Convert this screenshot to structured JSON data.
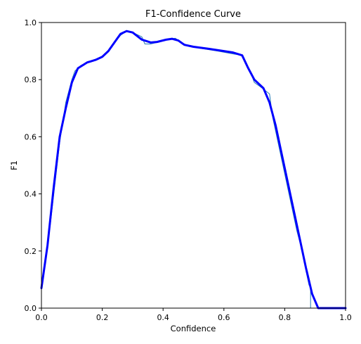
{
  "chart_data": {
    "type": "line",
    "title": "F1-Confidence Curve",
    "xlabel": "Confidence",
    "ylabel": "F1",
    "xlim": [
      0.0,
      1.0
    ],
    "ylim": [
      0.0,
      1.0
    ],
    "xticks": [
      "0.0",
      "0.2",
      "0.4",
      "0.6",
      "0.8",
      "1.0"
    ],
    "yticks": [
      "0.0",
      "0.2",
      "0.4",
      "0.6",
      "0.8",
      "1.0"
    ],
    "grid": false,
    "legend": "none",
    "series": [
      {
        "color": "#1f77b4",
        "style": "thin",
        "points": [
          [
            0.0,
            0.0
          ],
          [
            0.0,
            0.08
          ],
          [
            0.03,
            0.3
          ],
          [
            0.06,
            0.58
          ],
          [
            0.08,
            0.72
          ],
          [
            0.1,
            0.8
          ],
          [
            0.11,
            0.83
          ],
          [
            0.13,
            0.85
          ],
          [
            0.15,
            0.86
          ],
          [
            0.18,
            0.87
          ],
          [
            0.2,
            0.88
          ],
          [
            0.22,
            0.9
          ],
          [
            0.24,
            0.93
          ],
          [
            0.26,
            0.955
          ],
          [
            0.28,
            0.97
          ],
          [
            0.3,
            0.965
          ],
          [
            0.33,
            0.95
          ],
          [
            0.34,
            0.925
          ],
          [
            0.36,
            0.925
          ],
          [
            0.38,
            0.93
          ],
          [
            0.41,
            0.94
          ],
          [
            0.44,
            0.945
          ],
          [
            0.46,
            0.93
          ],
          [
            0.48,
            0.92
          ],
          [
            0.52,
            0.91
          ],
          [
            0.58,
            0.9
          ],
          [
            0.63,
            0.89
          ],
          [
            0.66,
            0.885
          ],
          [
            0.67,
            0.86
          ],
          [
            0.69,
            0.82
          ],
          [
            0.7,
            0.79
          ],
          [
            0.72,
            0.775
          ],
          [
            0.75,
            0.75
          ],
          [
            0.76,
            0.67
          ],
          [
            0.78,
            0.57
          ],
          [
            0.8,
            0.47
          ],
          [
            0.82,
            0.37
          ],
          [
            0.84,
            0.27
          ],
          [
            0.86,
            0.19
          ],
          [
            0.87,
            0.13
          ],
          [
            0.88,
            0.08
          ],
          [
            0.885,
            0.08
          ],
          [
            0.885,
            0.0
          ],
          [
            0.9,
            0.0
          ],
          [
            1.0,
            0.0
          ]
        ]
      },
      {
        "color": "#0000ff",
        "style": "thick",
        "points": [
          [
            0.0,
            0.07
          ],
          [
            0.02,
            0.22
          ],
          [
            0.04,
            0.42
          ],
          [
            0.06,
            0.6
          ],
          [
            0.08,
            0.7
          ],
          [
            0.1,
            0.79
          ],
          [
            0.12,
            0.84
          ],
          [
            0.15,
            0.86
          ],
          [
            0.18,
            0.87
          ],
          [
            0.2,
            0.88
          ],
          [
            0.22,
            0.9
          ],
          [
            0.24,
            0.93
          ],
          [
            0.26,
            0.96
          ],
          [
            0.28,
            0.97
          ],
          [
            0.3,
            0.965
          ],
          [
            0.33,
            0.94
          ],
          [
            0.36,
            0.93
          ],
          [
            0.38,
            0.932
          ],
          [
            0.41,
            0.94
          ],
          [
            0.43,
            0.943
          ],
          [
            0.45,
            0.937
          ],
          [
            0.47,
            0.922
          ],
          [
            0.5,
            0.915
          ],
          [
            0.55,
            0.908
          ],
          [
            0.6,
            0.9
          ],
          [
            0.63,
            0.895
          ],
          [
            0.66,
            0.885
          ],
          [
            0.68,
            0.84
          ],
          [
            0.7,
            0.8
          ],
          [
            0.73,
            0.77
          ],
          [
            0.75,
            0.72
          ],
          [
            0.77,
            0.64
          ],
          [
            0.79,
            0.54
          ],
          [
            0.81,
            0.44
          ],
          [
            0.83,
            0.34
          ],
          [
            0.85,
            0.24
          ],
          [
            0.87,
            0.14
          ],
          [
            0.89,
            0.05
          ],
          [
            0.91,
            0.0
          ],
          [
            1.0,
            0.0
          ]
        ]
      }
    ]
  }
}
